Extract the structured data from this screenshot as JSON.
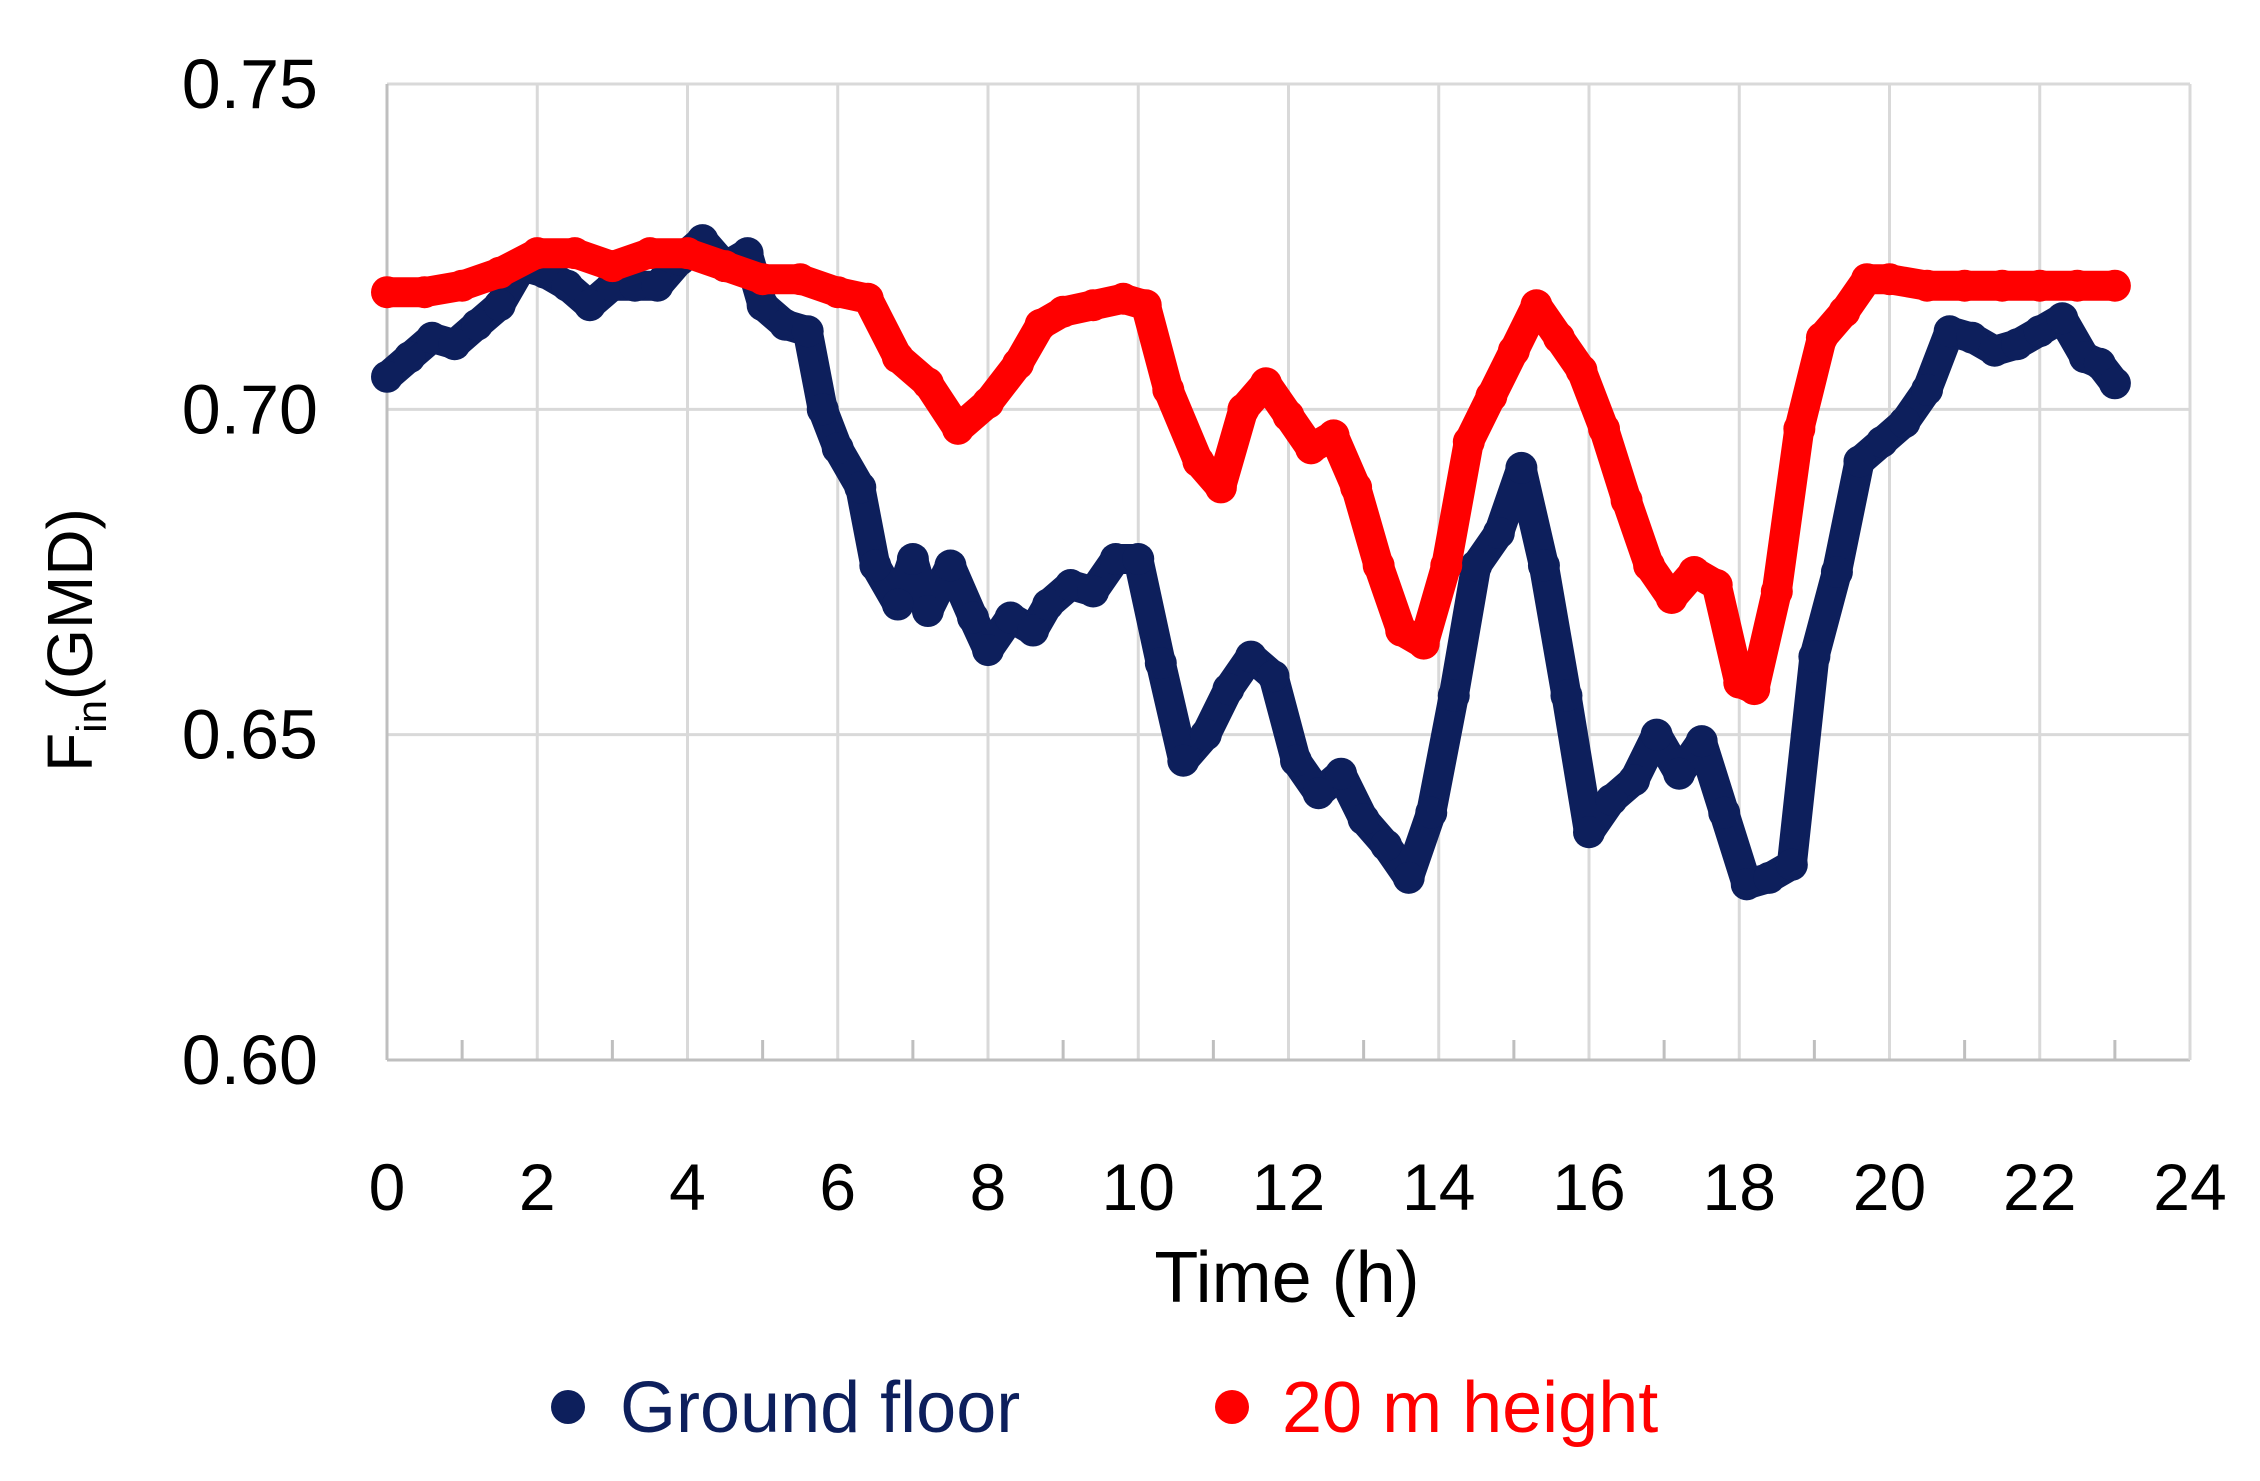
{
  "chart_data": {
    "type": "scatter",
    "title": "",
    "xlabel": "Time (h)",
    "ylabel_main": "F",
    "ylabel_sub": "in",
    "ylabel_suffix": "(GMD)",
    "xlim": [
      0,
      24
    ],
    "ylim": [
      0.6,
      0.75
    ],
    "x_ticks": [
      "0",
      "2",
      "4",
      "6",
      "8",
      "10",
      "12",
      "14",
      "16",
      "18",
      "20",
      "22",
      "24"
    ],
    "y_ticks": [
      "0.60",
      "0.65",
      "0.70",
      "0.75"
    ],
    "grid": true,
    "legend_position": "bottom",
    "series": [
      {
        "name": "Ground floor",
        "color": "#0d1f5c",
        "points": [
          [
            0.0,
            0.705
          ],
          [
            0.3,
            0.708
          ],
          [
            0.6,
            0.711
          ],
          [
            0.9,
            0.71
          ],
          [
            1.2,
            0.713
          ],
          [
            1.5,
            0.716
          ],
          [
            1.8,
            0.722
          ],
          [
            2.1,
            0.721
          ],
          [
            2.4,
            0.719
          ],
          [
            2.7,
            0.716
          ],
          [
            3.0,
            0.719
          ],
          [
            3.3,
            0.719
          ],
          [
            3.6,
            0.719
          ],
          [
            3.9,
            0.723
          ],
          [
            4.2,
            0.726
          ],
          [
            4.5,
            0.722
          ],
          [
            4.8,
            0.724
          ],
          [
            5.0,
            0.716
          ],
          [
            5.3,
            0.713
          ],
          [
            5.6,
            0.712
          ],
          [
            5.8,
            0.7
          ],
          [
            6.0,
            0.694
          ],
          [
            6.3,
            0.688
          ],
          [
            6.5,
            0.676
          ],
          [
            6.8,
            0.67
          ],
          [
            7.0,
            0.677
          ],
          [
            7.2,
            0.669
          ],
          [
            7.5,
            0.676
          ],
          [
            7.8,
            0.668
          ],
          [
            8.0,
            0.663
          ],
          [
            8.3,
            0.668
          ],
          [
            8.6,
            0.666
          ],
          [
            8.8,
            0.67
          ],
          [
            9.1,
            0.673
          ],
          [
            9.4,
            0.672
          ],
          [
            9.7,
            0.677
          ],
          [
            10.0,
            0.677
          ],
          [
            10.3,
            0.661
          ],
          [
            10.6,
            0.646
          ],
          [
            10.9,
            0.65
          ],
          [
            11.2,
            0.657
          ],
          [
            11.5,
            0.662
          ],
          [
            11.8,
            0.659
          ],
          [
            12.1,
            0.646
          ],
          [
            12.4,
            0.641
          ],
          [
            12.7,
            0.644
          ],
          [
            13.0,
            0.637
          ],
          [
            13.3,
            0.633
          ],
          [
            13.6,
            0.628
          ],
          [
            13.9,
            0.638
          ],
          [
            14.2,
            0.656
          ],
          [
            14.5,
            0.676
          ],
          [
            14.8,
            0.681
          ],
          [
            15.1,
            0.691
          ],
          [
            15.4,
            0.676
          ],
          [
            15.7,
            0.656
          ],
          [
            16.0,
            0.635
          ],
          [
            16.3,
            0.64
          ],
          [
            16.6,
            0.643
          ],
          [
            16.9,
            0.65
          ],
          [
            17.2,
            0.644
          ],
          [
            17.5,
            0.649
          ],
          [
            17.8,
            0.638
          ],
          [
            18.1,
            0.627
          ],
          [
            18.4,
            0.628
          ],
          [
            18.7,
            0.63
          ],
          [
            19.0,
            0.662
          ],
          [
            19.3,
            0.675
          ],
          [
            19.6,
            0.692
          ],
          [
            19.9,
            0.695
          ],
          [
            20.2,
            0.698
          ],
          [
            20.5,
            0.703
          ],
          [
            20.8,
            0.712
          ],
          [
            21.1,
            0.711
          ],
          [
            21.4,
            0.709
          ],
          [
            21.7,
            0.71
          ],
          [
            22.0,
            0.712
          ],
          [
            22.3,
            0.714
          ],
          [
            22.6,
            0.708
          ],
          [
            22.8,
            0.707
          ],
          [
            23.0,
            0.704
          ]
        ]
      },
      {
        "name": "20 m height",
        "color": "#ff0000",
        "points": [
          [
            0.0,
            0.718
          ],
          [
            0.5,
            0.718
          ],
          [
            1.0,
            0.719
          ],
          [
            1.5,
            0.721
          ],
          [
            2.0,
            0.724
          ],
          [
            2.5,
            0.724
          ],
          [
            3.0,
            0.722
          ],
          [
            3.5,
            0.724
          ],
          [
            4.0,
            0.724
          ],
          [
            4.5,
            0.722
          ],
          [
            5.0,
            0.72
          ],
          [
            5.5,
            0.72
          ],
          [
            6.0,
            0.718
          ],
          [
            6.4,
            0.717
          ],
          [
            6.8,
            0.708
          ],
          [
            7.2,
            0.704
          ],
          [
            7.6,
            0.697
          ],
          [
            8.0,
            0.701
          ],
          [
            8.4,
            0.707
          ],
          [
            8.7,
            0.713
          ],
          [
            9.0,
            0.715
          ],
          [
            9.4,
            0.716
          ],
          [
            9.8,
            0.717
          ],
          [
            10.1,
            0.716
          ],
          [
            10.4,
            0.703
          ],
          [
            10.8,
            0.692
          ],
          [
            11.1,
            0.688
          ],
          [
            11.4,
            0.7
          ],
          [
            11.7,
            0.704
          ],
          [
            12.0,
            0.699
          ],
          [
            12.3,
            0.694
          ],
          [
            12.6,
            0.696
          ],
          [
            12.9,
            0.688
          ],
          [
            13.2,
            0.676
          ],
          [
            13.5,
            0.666
          ],
          [
            13.8,
            0.664
          ],
          [
            14.1,
            0.676
          ],
          [
            14.4,
            0.695
          ],
          [
            14.7,
            0.702
          ],
          [
            15.0,
            0.709
          ],
          [
            15.3,
            0.716
          ],
          [
            15.6,
            0.711
          ],
          [
            15.9,
            0.706
          ],
          [
            16.2,
            0.697
          ],
          [
            16.5,
            0.686
          ],
          [
            16.8,
            0.676
          ],
          [
            17.1,
            0.671
          ],
          [
            17.4,
            0.675
          ],
          [
            17.7,
            0.673
          ],
          [
            18.0,
            0.658
          ],
          [
            18.2,
            0.657
          ],
          [
            18.5,
            0.672
          ],
          [
            18.8,
            0.697
          ],
          [
            19.1,
            0.711
          ],
          [
            19.4,
            0.715
          ],
          [
            19.7,
            0.72
          ],
          [
            20.0,
            0.72
          ],
          [
            20.5,
            0.719
          ],
          [
            21.0,
            0.719
          ],
          [
            21.5,
            0.719
          ],
          [
            22.0,
            0.719
          ],
          [
            22.5,
            0.719
          ],
          [
            23.0,
            0.719
          ]
        ]
      }
    ]
  }
}
